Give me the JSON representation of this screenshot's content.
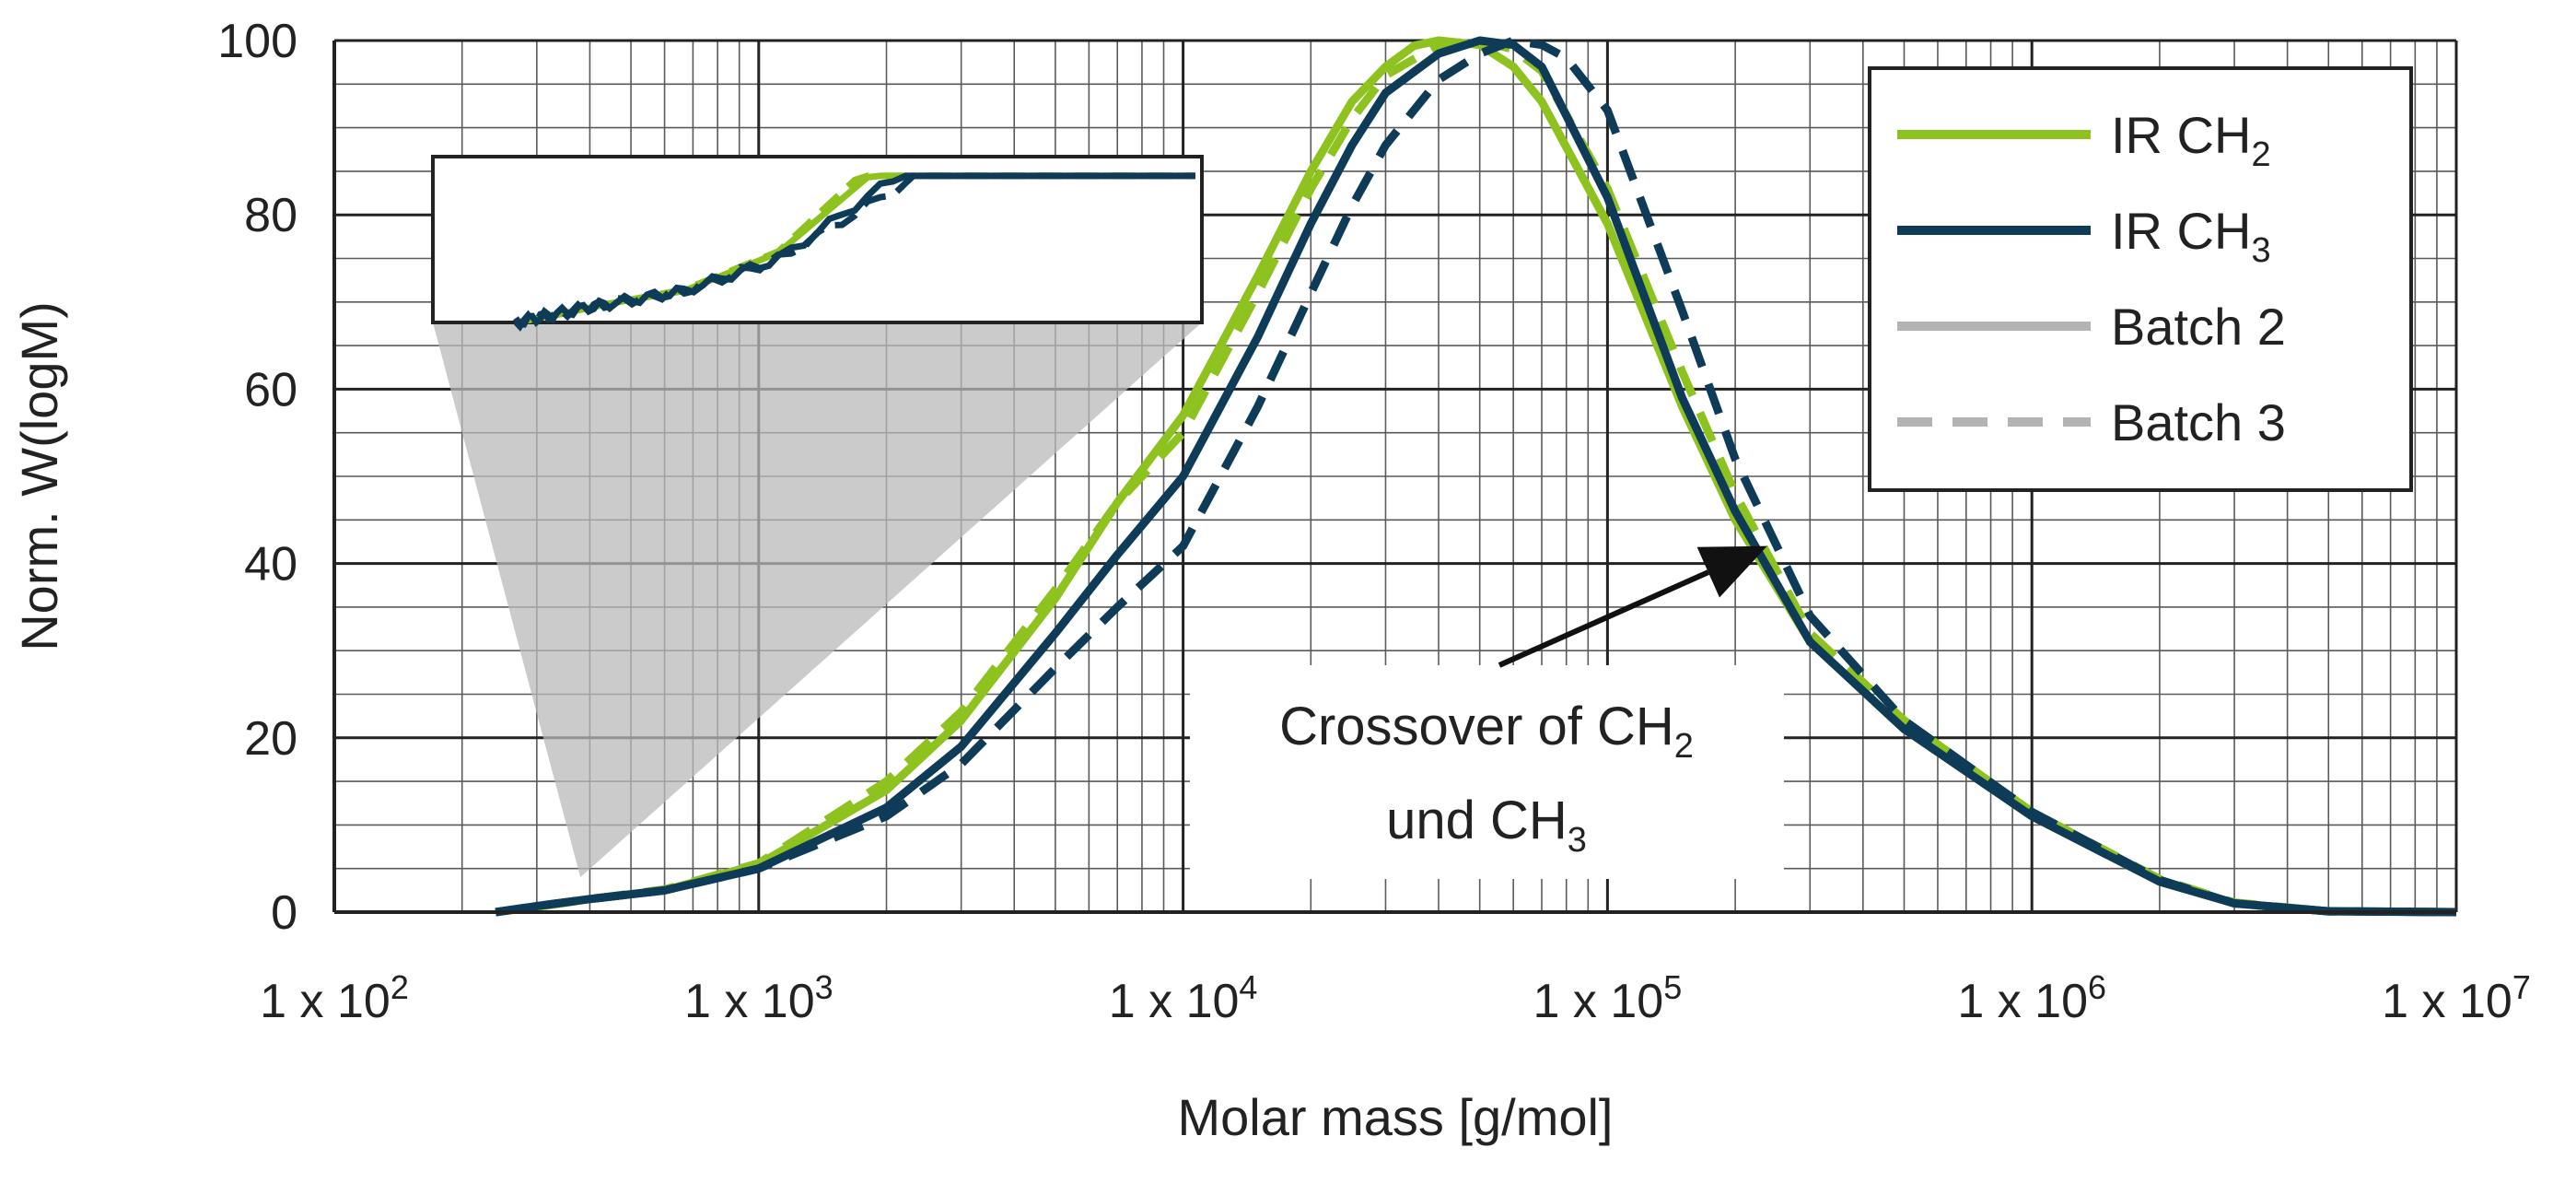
{
  "chart_data": {
    "type": "line",
    "title": "",
    "xlabel": "Molar mass   [g/mol]",
    "ylabel": "Norm. W(logM)",
    "x_scale": "log",
    "xlim": [
      100,
      10000000
    ],
    "ylim": [
      0,
      100
    ],
    "grid": true,
    "x_ticks": [
      {
        "value": 100,
        "base": "1 x 10",
        "exp": "2"
      },
      {
        "value": 1000,
        "base": "1 x 10",
        "exp": "3"
      },
      {
        "value": 10000,
        "base": "1 x 10",
        "exp": "4"
      },
      {
        "value": 100000,
        "base": "1 x 10",
        "exp": "5"
      },
      {
        "value": 1000000,
        "base": "1 x 10",
        "exp": "6"
      },
      {
        "value": 10000000,
        "base": "1 x 10",
        "exp": "7"
      }
    ],
    "y_ticks": [
      0,
      20,
      40,
      60,
      80,
      100
    ],
    "legend": {
      "placement": "top-right",
      "entries": [
        {
          "text": "IR CH",
          "sub": "2",
          "color": "#8dc21f",
          "dash": "solid"
        },
        {
          "text": "IR CH",
          "sub": "3",
          "color": "#0e3b57",
          "dash": "solid"
        },
        {
          "text": "Batch 2",
          "sub": "",
          "color": "#b3b3b3",
          "dash": "solid"
        },
        {
          "text": "Batch 3",
          "sub": "",
          "color": "#b3b3b3",
          "dash": "dashed"
        }
      ]
    },
    "series": [
      {
        "name": "IR CH2 Batch 2",
        "color": "#8dc21f",
        "dash": "solid",
        "x": [
          240,
          300,
          400,
          600,
          1000,
          2000,
          3000,
          5000,
          7000,
          10000,
          15000,
          20000,
          25000,
          30000,
          35000,
          40000,
          50000,
          60000,
          70000,
          100000,
          150000,
          200000,
          300000,
          500000,
          1000000,
          2000000,
          3000000,
          5000000,
          10000000
        ],
        "y": [
          0,
          0.6,
          1.5,
          2.5,
          5.5,
          14,
          22,
          36,
          47,
          57,
          73,
          85,
          93,
          97,
          99.4,
          100,
          99.5,
          97,
          93,
          79,
          58,
          45,
          31,
          21,
          11,
          3.5,
          1.0,
          0.1,
          0
        ]
      },
      {
        "name": "IR CH2 Batch 3",
        "color": "#8dc21f",
        "dash": "dashed",
        "x": [
          240,
          300,
          400,
          600,
          1000,
          2000,
          3000,
          5000,
          7000,
          10000,
          15000,
          20000,
          25000,
          30000,
          40000,
          50000,
          60000,
          70000,
          100000,
          150000,
          200000,
          300000,
          500000,
          1000000,
          2000000,
          3000000,
          5000000,
          10000000
        ],
        "y": [
          0,
          0.6,
          1.5,
          2.6,
          5.6,
          15,
          23,
          37,
          47,
          55,
          71,
          83,
          91,
          96,
          99.5,
          100,
          99,
          96.5,
          83,
          62,
          48,
          32,
          22,
          11.5,
          3.8,
          1.1,
          0.1,
          0
        ]
      },
      {
        "name": "IR CH3 Batch 2",
        "color": "#0e3b57",
        "dash": "solid",
        "x": [
          240,
          300,
          400,
          600,
          1000,
          2000,
          3000,
          5000,
          7000,
          10000,
          15000,
          20000,
          25000,
          30000,
          40000,
          50000,
          60000,
          70000,
          100000,
          150000,
          200000,
          300000,
          500000,
          1000000,
          2000000,
          3000000,
          5000000,
          10000000
        ],
        "y": [
          0,
          0.7,
          1.5,
          2.5,
          5.0,
          12,
          19,
          32,
          41,
          50,
          66,
          79,
          88,
          94,
          98.5,
          100,
          99.5,
          97,
          82,
          59,
          46,
          31,
          21,
          11,
          3.5,
          1.0,
          0.1,
          0
        ]
      },
      {
        "name": "IR CH3 Batch 3",
        "color": "#0e3b57",
        "dash": "dashed",
        "x": [
          240,
          300,
          400,
          600,
          1000,
          2000,
          3000,
          5000,
          7000,
          10000,
          15000,
          20000,
          25000,
          30000,
          40000,
          50000,
          60000,
          70000,
          80000,
          100000,
          150000,
          200000,
          300000,
          500000,
          1000000,
          2000000,
          3000000,
          5000000,
          10000000
        ],
        "y": [
          0,
          0.7,
          1.5,
          2.5,
          5.0,
          11,
          17,
          28,
          35,
          42,
          58,
          71,
          81,
          88,
          95.5,
          98.5,
          100,
          99.5,
          98,
          92,
          69,
          52,
          34,
          22,
          11.5,
          3.7,
          1.0,
          0.1,
          0
        ]
      }
    ],
    "inset": {
      "description_source": "zoom of region near 400 g/mol",
      "x_range": [
        240,
        10000
      ]
    },
    "annotations": [
      {
        "text_line1": "Crossover of CH",
        "sub1": "2",
        "text_line2": "und CH",
        "sub2": "3",
        "points_to_x": 250000,
        "points_to_y": 42
      }
    ]
  }
}
